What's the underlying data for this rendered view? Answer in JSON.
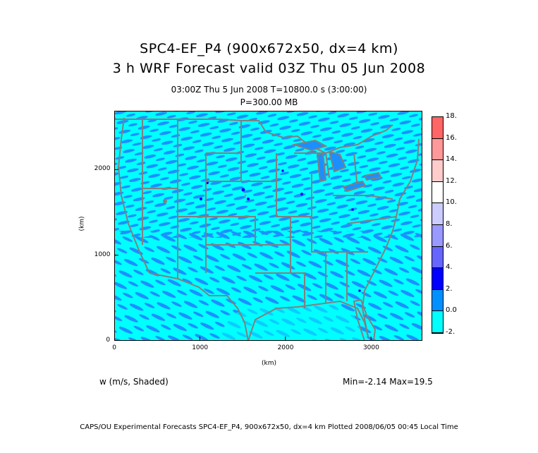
{
  "header": {
    "title_line1": "SPC4-EF_P4 (900x672x50, dx=4 km)",
    "title_line2": "3 h  WRF Forecast valid 03Z Thu 05 Jun 2008",
    "subtitle_time": "03:00Z Thu   5 Jun 2008     T=10800.0 s (3:00:00)",
    "subtitle_level": "P=300.00 MB"
  },
  "axes": {
    "xlabel": "(km)",
    "ylabel": "(km)",
    "x_ticks": [
      "0",
      "1000",
      "2000",
      "3000"
    ],
    "y_ticks": [
      "0",
      "1000",
      "2000"
    ],
    "x_range_km": [
      0,
      3600
    ],
    "y_range_km": [
      0,
      2688
    ]
  },
  "field": {
    "variable_label": "w (m/s, Shaded)",
    "minmax_label": "Min=-2.14  Max=19.5"
  },
  "colorbar": {
    "labels": [
      "18.",
      "16.",
      "14.",
      "12.",
      "10.",
      "8.",
      "6.",
      "4.",
      "2.",
      "0.0",
      "-2."
    ],
    "colors_bottom_to_top": [
      "#00ffff",
      "#0090ff",
      "#0000ff",
      "#6666ff",
      "#9999ff",
      "#ccccff",
      "#ffffff",
      "#ffcccc",
      "#ff9999",
      "#ff6666"
    ]
  },
  "map": {
    "background_color": "#00ffff",
    "secondary_color": "#1b8fff",
    "boundary_color": "#808080"
  },
  "footer": {
    "text": "CAPS/OU Experimental Forecasts  SPC4-EF_P4, 900x672x50, dx=4 km  Plotted 2008/06/05 00:45 Local Time"
  }
}
